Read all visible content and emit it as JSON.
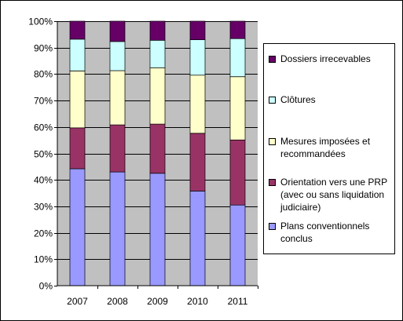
{
  "chart_data": {
    "type": "bar",
    "stacked": true,
    "percent": true,
    "categories": [
      "2007",
      "2008",
      "2009",
      "2010",
      "2011"
    ],
    "series": [
      {
        "name": "Plans conventionnels conclus",
        "color": "#9999ff",
        "values": [
          44.2,
          43.0,
          42.5,
          35.8,
          30.5
        ]
      },
      {
        "name": "Orientation vers une PRP (avec ou sans liquidation judiciaire)",
        "color": "#993366",
        "values": [
          15.5,
          17.8,
          18.6,
          21.8,
          24.6
        ]
      },
      {
        "name": "Mesures imposées et recommandées",
        "color": "#ffffcc",
        "values": [
          21.5,
          20.5,
          21.3,
          22.0,
          23.9
        ]
      },
      {
        "name": "Clôtures",
        "color": "#ccffff",
        "values": [
          12.0,
          11.0,
          10.4,
          13.4,
          14.4
        ]
      },
      {
        "name": "Dossiers irrecevables",
        "color": "#660066",
        "values": [
          6.8,
          7.7,
          7.2,
          7.0,
          6.6
        ]
      }
    ],
    "ylim": [
      0,
      100
    ],
    "yticks": [
      "0%",
      "10%",
      "20%",
      "30%",
      "40%",
      "50%",
      "60%",
      "70%",
      "80%",
      "90%",
      "100%"
    ],
    "plot_background": "#c0c0c0",
    "grid": true,
    "legend_position": "right",
    "title": "",
    "xlabel": "",
    "ylabel": ""
  },
  "legend": {
    "items": [
      {
        "label": "Dossiers irrecevables",
        "color": "#660066"
      },
      {
        "label": "Clôtures",
        "color": "#ccffff"
      },
      {
        "label": "Mesures imposées et\nrecommandées",
        "color": "#ffffcc"
      },
      {
        "label": "Orientation vers une PRP\n(avec ou sans liquidation\njudiciaire)",
        "color": "#993366"
      },
      {
        "label": "Plans conventionnels\nconclus",
        "color": "#9999ff"
      }
    ]
  }
}
